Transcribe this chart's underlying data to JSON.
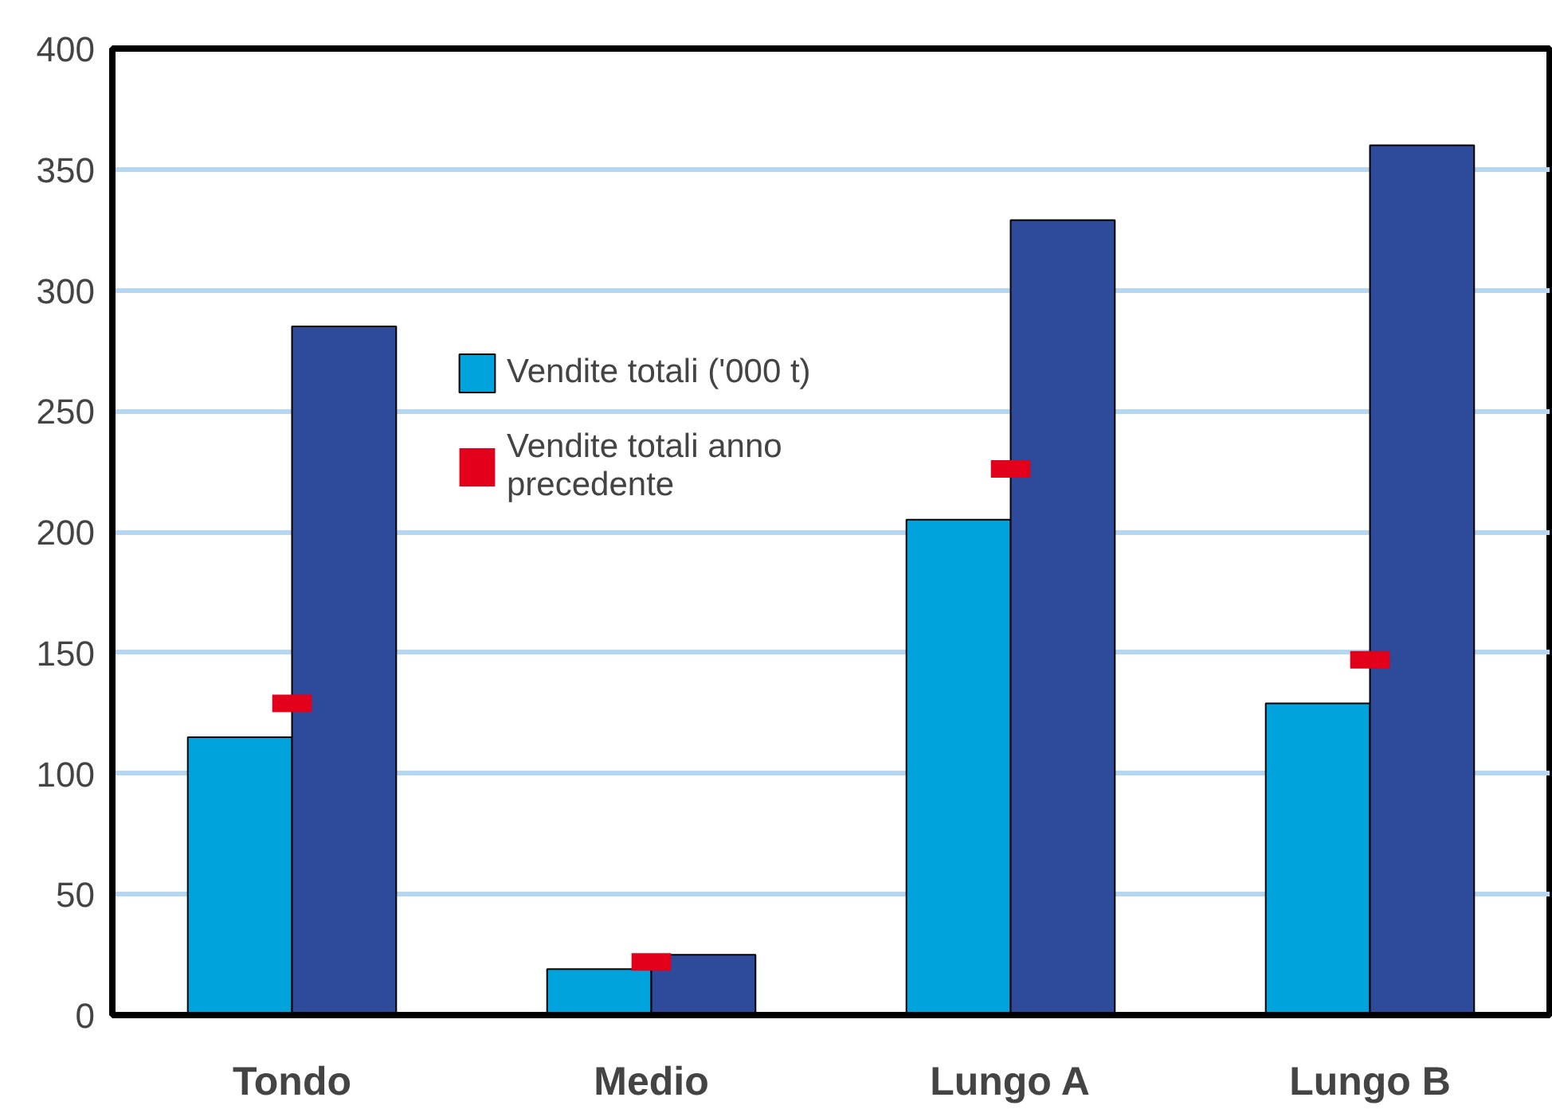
{
  "chart_data": {
    "type": "bar",
    "categories": [
      "Tondo",
      "Medio",
      "Lungo A",
      "Lungo B"
    ],
    "series": [
      {
        "name": "Vendite totali ('000 t)",
        "color": "#00a3dc",
        "values": [
          115,
          19,
          205,
          129
        ]
      },
      {
        "color": "#2e4a9a",
        "values": [
          285,
          25,
          329,
          360
        ]
      },
      {
        "name": "Vendite totali anno precedente",
        "type": "scatter",
        "marker": "square",
        "color": "#e2001a",
        "x": [
          "Tondo",
          "Medio",
          "Lungo A",
          "Lungo B"
        ],
        "values": [
          129,
          22,
          226,
          147
        ]
      }
    ],
    "ylim": [
      0,
      400
    ],
    "yticks": [
      0,
      50,
      100,
      150,
      200,
      250,
      300,
      350,
      400
    ],
    "grid": "y",
    "legend": "top"
  }
}
